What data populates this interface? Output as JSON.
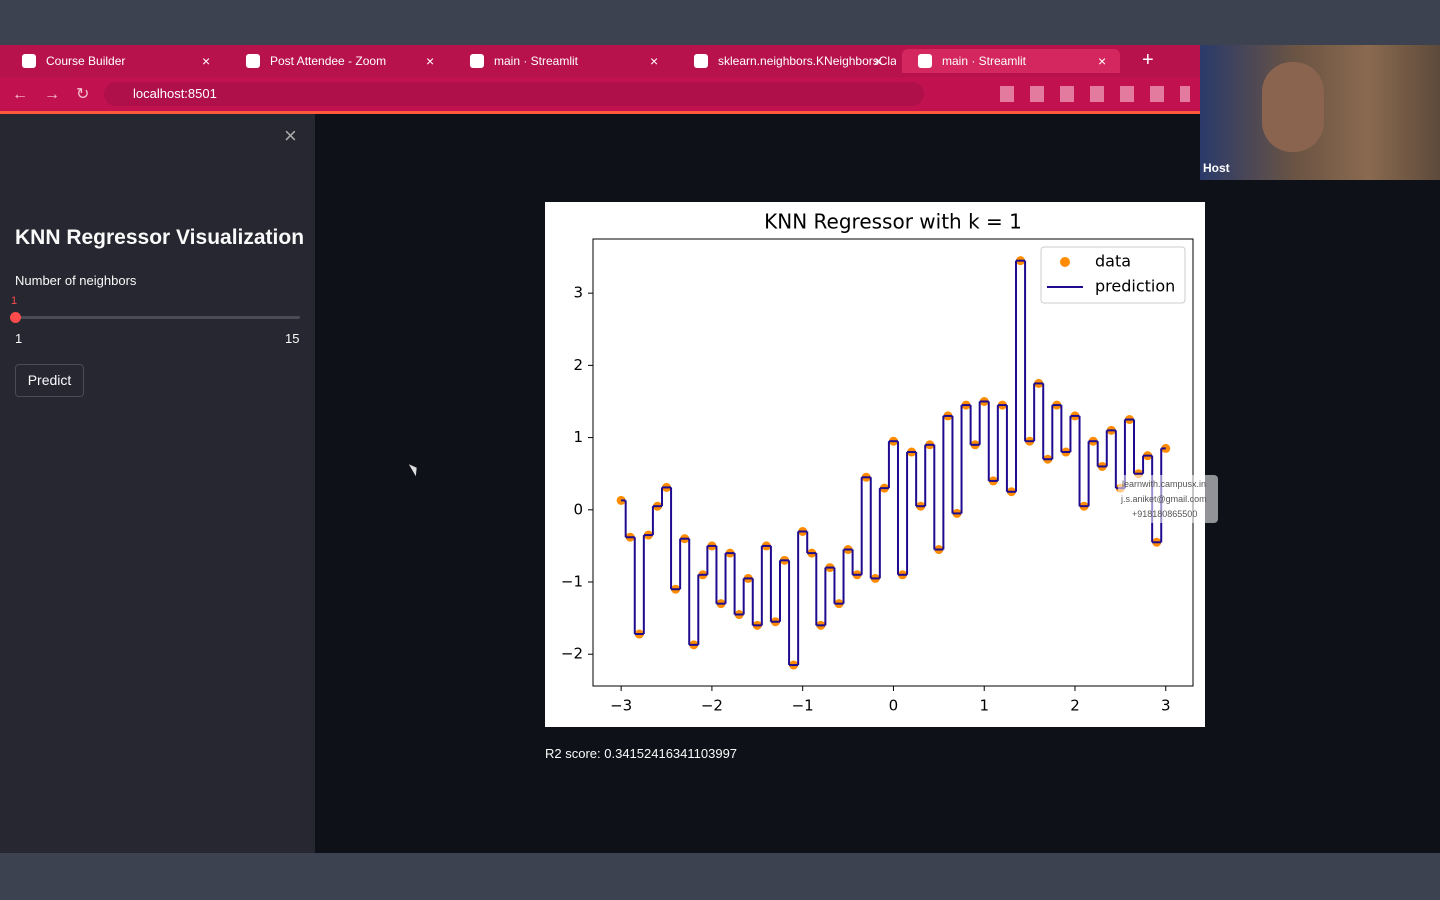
{
  "browser": {
    "tabs": [
      "Course Builder",
      "Post Attendee - Zoom",
      "main · Streamlit",
      "sklearn.neighbors.KNeighborsCla",
      "main · Streamlit"
    ],
    "url": "localhost:8501"
  },
  "webcam": {
    "label": "Host"
  },
  "sidebar": {
    "title": "KNN Regressor Visualization",
    "slider": {
      "label": "Number of neighbors",
      "value": 1,
      "min": 1,
      "max": 15
    },
    "button": "Predict"
  },
  "chart_data": {
    "type": "scatter",
    "title": "KNN Regressor with k = 1",
    "x": [
      -3.0,
      -2.9,
      -2.8,
      -2.7,
      -2.6,
      -2.5,
      -2.4,
      -2.3,
      -2.2,
      -2.1,
      -2.0,
      -1.9,
      -1.8,
      -1.7,
      -1.6,
      -1.5,
      -1.4,
      -1.3,
      -1.2,
      -1.1,
      -1.0,
      -0.9,
      -0.8,
      -0.7,
      -0.6,
      -0.5,
      -0.4,
      -0.3,
      -0.2,
      -0.1,
      0.0,
      0.1,
      0.2,
      0.3,
      0.4,
      0.5,
      0.6,
      0.7,
      0.8,
      0.9,
      1.0,
      1.1,
      1.2,
      1.3,
      1.4,
      1.5,
      1.6,
      1.7,
      1.8,
      1.9,
      2.0,
      2.1,
      2.2,
      2.3,
      2.4,
      2.5,
      2.6,
      2.7,
      2.8,
      2.9,
      3.0
    ],
    "series": [
      {
        "name": "data",
        "color": "#ff8c00",
        "values": [
          0.13,
          -0.38,
          -1.72,
          -0.35,
          0.05,
          0.31,
          -1.1,
          -0.4,
          -1.87,
          -0.9,
          -0.5,
          -1.3,
          -0.6,
          -1.45,
          -0.95,
          -1.6,
          -0.5,
          -1.55,
          -0.7,
          -2.15,
          -0.3,
          -0.6,
          -1.6,
          -0.8,
          -1.3,
          -0.55,
          -0.9,
          0.45,
          -0.95,
          0.3,
          0.95,
          -0.9,
          0.8,
          0.05,
          0.9,
          -0.55,
          1.3,
          -0.05,
          1.45,
          0.9,
          1.5,
          0.4,
          1.45,
          0.25,
          3.45,
          0.95,
          1.75,
          0.7,
          1.45,
          0.8,
          1.3,
          0.05,
          0.95,
          0.6,
          1.1,
          0.3,
          1.25,
          0.5,
          0.75,
          -0.45,
          0.85
        ]
      },
      {
        "name": "prediction",
        "type": "line",
        "color": "#1f0b8f",
        "values": [
          0.13,
          -0.38,
          -1.72,
          -0.35,
          0.05,
          0.31,
          -1.1,
          -0.4,
          -1.87,
          -0.9,
          -0.5,
          -1.3,
          -0.6,
          -1.45,
          -0.95,
          -1.6,
          -0.5,
          -1.55,
          -0.7,
          -2.15,
          -0.3,
          -0.6,
          -1.6,
          -0.8,
          -1.3,
          -0.55,
          -0.9,
          0.45,
          -0.95,
          0.3,
          0.95,
          -0.9,
          0.8,
          0.05,
          0.9,
          -0.55,
          1.3,
          -0.05,
          1.45,
          0.9,
          1.5,
          0.4,
          1.45,
          0.25,
          3.45,
          0.95,
          1.75,
          0.7,
          1.45,
          0.8,
          1.3,
          0.05,
          0.95,
          0.6,
          1.1,
          0.3,
          1.25,
          0.5,
          0.75,
          -0.45,
          0.85
        ]
      }
    ],
    "xlim": [
      -3.31,
      3.3
    ],
    "ylim": [
      -2.44,
      3.75
    ],
    "xticks": [
      {
        "value": -3,
        "label": "−3"
      },
      {
        "value": -2,
        "label": "−2"
      },
      {
        "value": -1,
        "label": "−1"
      },
      0,
      1,
      2,
      3
    ],
    "yticks": [
      {
        "value": -2,
        "label": "−2"
      },
      {
        "value": -1,
        "label": "−1"
      },
      0,
      1,
      2,
      3
    ],
    "legend": "upper right"
  },
  "result": "R2 score: 0.34152416341103997",
  "watermark": [
    "learnwith.campusx.in",
    "j.s.aniket@gmail.com",
    "+918180865500"
  ]
}
